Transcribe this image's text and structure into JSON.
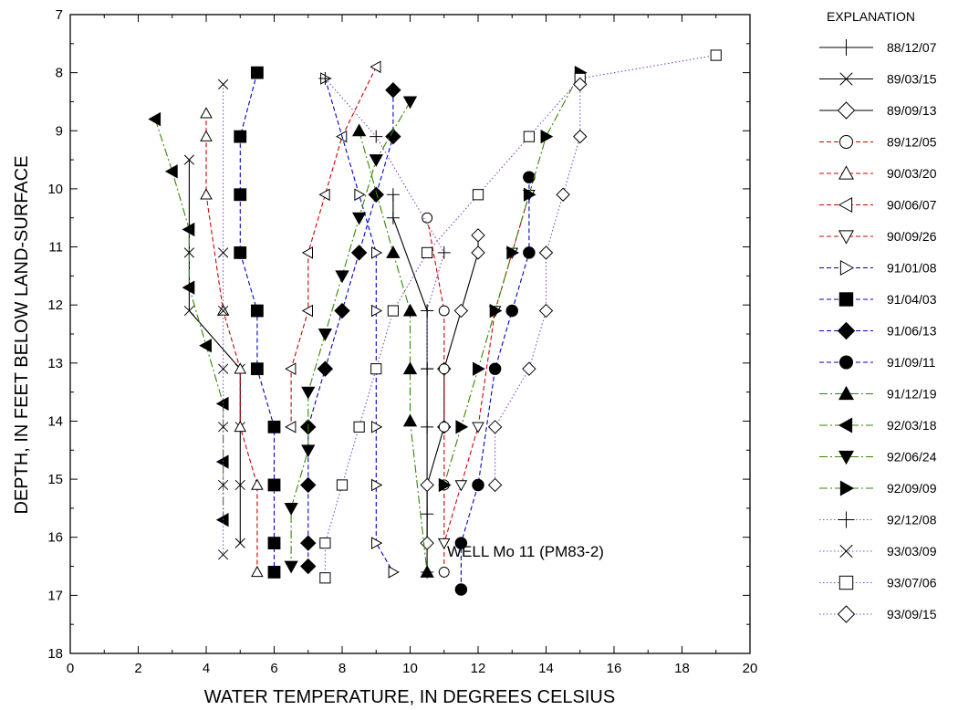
{
  "chart_data": {
    "type": "scatter",
    "title": "",
    "xlabel": "WATER TEMPERATURE, IN DEGREES CELSIUS",
    "ylabel": "DEPTH, IN FEET BELOW LAND-SURFACE",
    "annotation": "WELL Mo 11 (PM83-2)",
    "legend_title": "EXPLANATION",
    "legend_position": "right",
    "xlim": [
      0,
      20
    ],
    "ylim": [
      18,
      7
    ],
    "y_inverted": true,
    "x_ticks": [
      "0",
      "2",
      "4",
      "6",
      "8",
      "10",
      "12",
      "14",
      "16",
      "18",
      "20"
    ],
    "y_ticks": [
      "7",
      "8",
      "9",
      "10",
      "11",
      "12",
      "13",
      "14",
      "15",
      "16",
      "17",
      "18"
    ],
    "grid": false,
    "series": [
      {
        "name": "88/12/07",
        "marker": "plus",
        "line": "solid",
        "color": "#000000",
        "x": [
          9.5,
          9.5,
          10.5,
          10.5,
          10.5,
          10.5,
          10.5
        ],
        "y": [
          10.1,
          10.5,
          12.1,
          13.1,
          14.1,
          15.6,
          16.6
        ]
      },
      {
        "name": "89/03/15",
        "marker": "x",
        "line": "solid",
        "color": "#000000",
        "x": [
          3.5,
          3.5,
          3.5,
          5,
          5,
          5,
          5
        ],
        "y": [
          9.5,
          11.1,
          12.1,
          13.1,
          14.1,
          15.1,
          16.1
        ]
      },
      {
        "name": "89/09/13",
        "marker": "diamond-open",
        "line": "solid",
        "color": "#000000",
        "x": [
          12,
          12,
          11.5,
          11,
          11,
          10.5,
          10.5
        ],
        "y": [
          10.8,
          11.1,
          12.1,
          13.1,
          14.1,
          15.1,
          16.1
        ]
      },
      {
        "name": "89/12/05",
        "marker": "circle-open",
        "line": "dashed",
        "color": "#d00000",
        "x": [
          10.5,
          11,
          11,
          11,
          11,
          11
        ],
        "y": [
          10.5,
          12.1,
          13.1,
          14.1,
          15.1,
          16.6
        ]
      },
      {
        "name": "90/03/20",
        "marker": "triangle-up-open",
        "line": "dashed",
        "color": "#d00000",
        "x": [
          4,
          4,
          4,
          4.5,
          5,
          5,
          5.5,
          5.5
        ],
        "y": [
          8.7,
          9.1,
          10.1,
          12.1,
          13.1,
          14.1,
          15.1,
          16.6
        ]
      },
      {
        "name": "90/06/07",
        "marker": "triangle-left-open",
        "line": "dashed",
        "color": "#d00000",
        "x": [
          9,
          8,
          7.5,
          7,
          7,
          6.5,
          6.5
        ],
        "y": [
          7.9,
          9.1,
          10.1,
          11.1,
          12.1,
          13.1,
          14.1
        ]
      },
      {
        "name": "90/09/26",
        "marker": "triangle-down-open",
        "line": "dashed",
        "color": "#d00000",
        "x": [
          13.5,
          13,
          12.5,
          12,
          11.5,
          11
        ],
        "y": [
          10.1,
          11.1,
          12.1,
          14.1,
          15.1,
          16.1
        ]
      },
      {
        "name": "91/01/08",
        "marker": "triangle-right-open",
        "line": "dashed",
        "color": "#0000cc",
        "x": [
          7.5,
          8.5,
          9,
          9,
          9,
          9,
          9,
          9.5
        ],
        "y": [
          8.1,
          10.1,
          11.1,
          12.1,
          14.1,
          15.1,
          16.1,
          16.6
        ]
      },
      {
        "name": "91/04/03",
        "marker": "square-filled",
        "line": "dashed",
        "color": "#0000cc",
        "x": [
          5.5,
          5,
          5,
          5,
          5.5,
          5.5,
          6,
          6,
          6,
          6
        ],
        "y": [
          8.0,
          9.1,
          10.1,
          11.1,
          12.1,
          13.1,
          14.1,
          15.1,
          16.1,
          16.6
        ]
      },
      {
        "name": "91/06/13",
        "marker": "diamond-filled",
        "line": "dashed",
        "color": "#0000cc",
        "x": [
          9.5,
          9.5,
          9,
          8.5,
          8,
          7.5,
          7,
          7,
          7,
          7
        ],
        "y": [
          8.3,
          9.1,
          10.1,
          11.1,
          12.1,
          13.1,
          14.1,
          15.1,
          16.1,
          16.5
        ]
      },
      {
        "name": "91/09/11",
        "marker": "circle-filled",
        "line": "dashed",
        "color": "#0000cc",
        "x": [
          13.5,
          13.5,
          13,
          12.5,
          12,
          11.5,
          11.5
        ],
        "y": [
          9.8,
          11.1,
          12.1,
          13.1,
          15.1,
          16.1,
          16.9
        ]
      },
      {
        "name": "91/12/19",
        "marker": "triangle-up-filled",
        "line": "dashdot",
        "color": "#338800",
        "x": [
          8.5,
          9.5,
          10,
          10,
          10,
          10.5
        ],
        "y": [
          9.0,
          11.1,
          12.1,
          13.1,
          14.0,
          16.6
        ]
      },
      {
        "name": "92/03/18",
        "marker": "triangle-left-filled",
        "line": "dashdot",
        "color": "#338800",
        "x": [
          2.5,
          3,
          3.5,
          3.5,
          4,
          4.5,
          4.5,
          4.5
        ],
        "y": [
          8.8,
          9.7,
          10.7,
          11.7,
          12.7,
          13.7,
          14.7,
          15.7
        ]
      },
      {
        "name": "92/06/24",
        "marker": "triangle-down-filled",
        "line": "dashdot",
        "color": "#338800",
        "x": [
          10,
          9,
          8.5,
          8,
          7.5,
          7,
          7,
          6.5,
          6.5
        ],
        "y": [
          8.5,
          9.5,
          10.5,
          11.5,
          12.5,
          13.5,
          14.5,
          15.5,
          16.5
        ]
      },
      {
        "name": "92/09/09",
        "marker": "triangle-right-filled",
        "line": "dashdot",
        "color": "#338800",
        "x": [
          15,
          14,
          13.5,
          13,
          12.5,
          12,
          11.5,
          11
        ],
        "y": [
          8.0,
          9.1,
          10.1,
          11.1,
          12.1,
          13.1,
          14.1,
          15.1
        ]
      },
      {
        "name": "92/12/08",
        "marker": "plus",
        "line": "dotted",
        "color": "#8844cc",
        "x": [
          7.5,
          9,
          11,
          10.5,
          10.5
        ],
        "y": [
          8.1,
          9.1,
          11.1,
          12.1,
          13.1
        ]
      },
      {
        "name": "93/03/09",
        "marker": "x",
        "line": "dotted",
        "color": "#8844cc",
        "x": [
          4.5,
          4.5,
          4.5,
          4.5,
          4.5,
          4.5,
          4.5
        ],
        "y": [
          8.2,
          11.1,
          12.1,
          13.1,
          14.1,
          15.1,
          16.3
        ]
      },
      {
        "name": "93/07/06",
        "marker": "square-open",
        "line": "dotted",
        "color": "#8844cc",
        "x": [
          19,
          15,
          13.5,
          12,
          10.5,
          9.5,
          9,
          8.5,
          8,
          7.5,
          7.5
        ],
        "y": [
          7.7,
          8.1,
          9.1,
          10.1,
          11.1,
          12.1,
          13.1,
          14.1,
          15.1,
          16.1,
          16.7
        ]
      },
      {
        "name": "93/09/15",
        "marker": "diamond-open",
        "line": "dotted",
        "color": "#8844cc",
        "x": [
          15,
          15,
          14.5,
          14,
          14,
          13.5,
          12.5,
          12.5
        ],
        "y": [
          8.2,
          9.1,
          10.1,
          11.1,
          12.1,
          13.1,
          14.1,
          15.1
        ]
      }
    ]
  }
}
